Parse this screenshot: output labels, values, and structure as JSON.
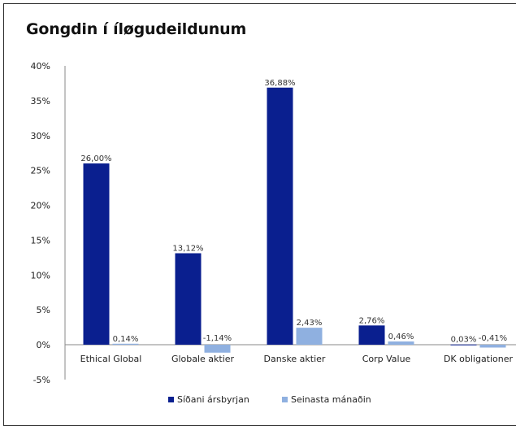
{
  "chart_data": {
    "type": "bar",
    "title": "Gongdin í íløgudeildunum",
    "categories": [
      "Ethical Global",
      "Globale aktier",
      "Danske aktier",
      "Corp Value",
      "DK obligationer"
    ],
    "series": [
      {
        "name": "Síðani ársbyrjan",
        "color": "#0a1f8f",
        "values": [
          26.0,
          13.12,
          36.88,
          2.76,
          0.03
        ],
        "labels": [
          "26,00%",
          "13,12%",
          "36,88%",
          "2,76%",
          "0,03%"
        ]
      },
      {
        "name": "Seinasta mánaðin",
        "color": "#8fb0e0",
        "values": [
          0.14,
          -1.14,
          2.43,
          0.46,
          -0.41
        ],
        "labels": [
          "0,14%",
          "-1,14%",
          "2,43%",
          "0,46%",
          "-0,41%"
        ]
      }
    ],
    "ylim": [
      -5,
      40
    ],
    "yticks": [
      -5,
      0,
      5,
      10,
      15,
      20,
      25,
      30,
      35,
      40
    ],
    "ytick_labels": [
      "-5%",
      "0%",
      "5%",
      "10%",
      "15%",
      "20%",
      "25%",
      "30%",
      "35%",
      "40%"
    ],
    "grid": false,
    "legend": "bottom",
    "xlabel": "",
    "ylabel": ""
  }
}
